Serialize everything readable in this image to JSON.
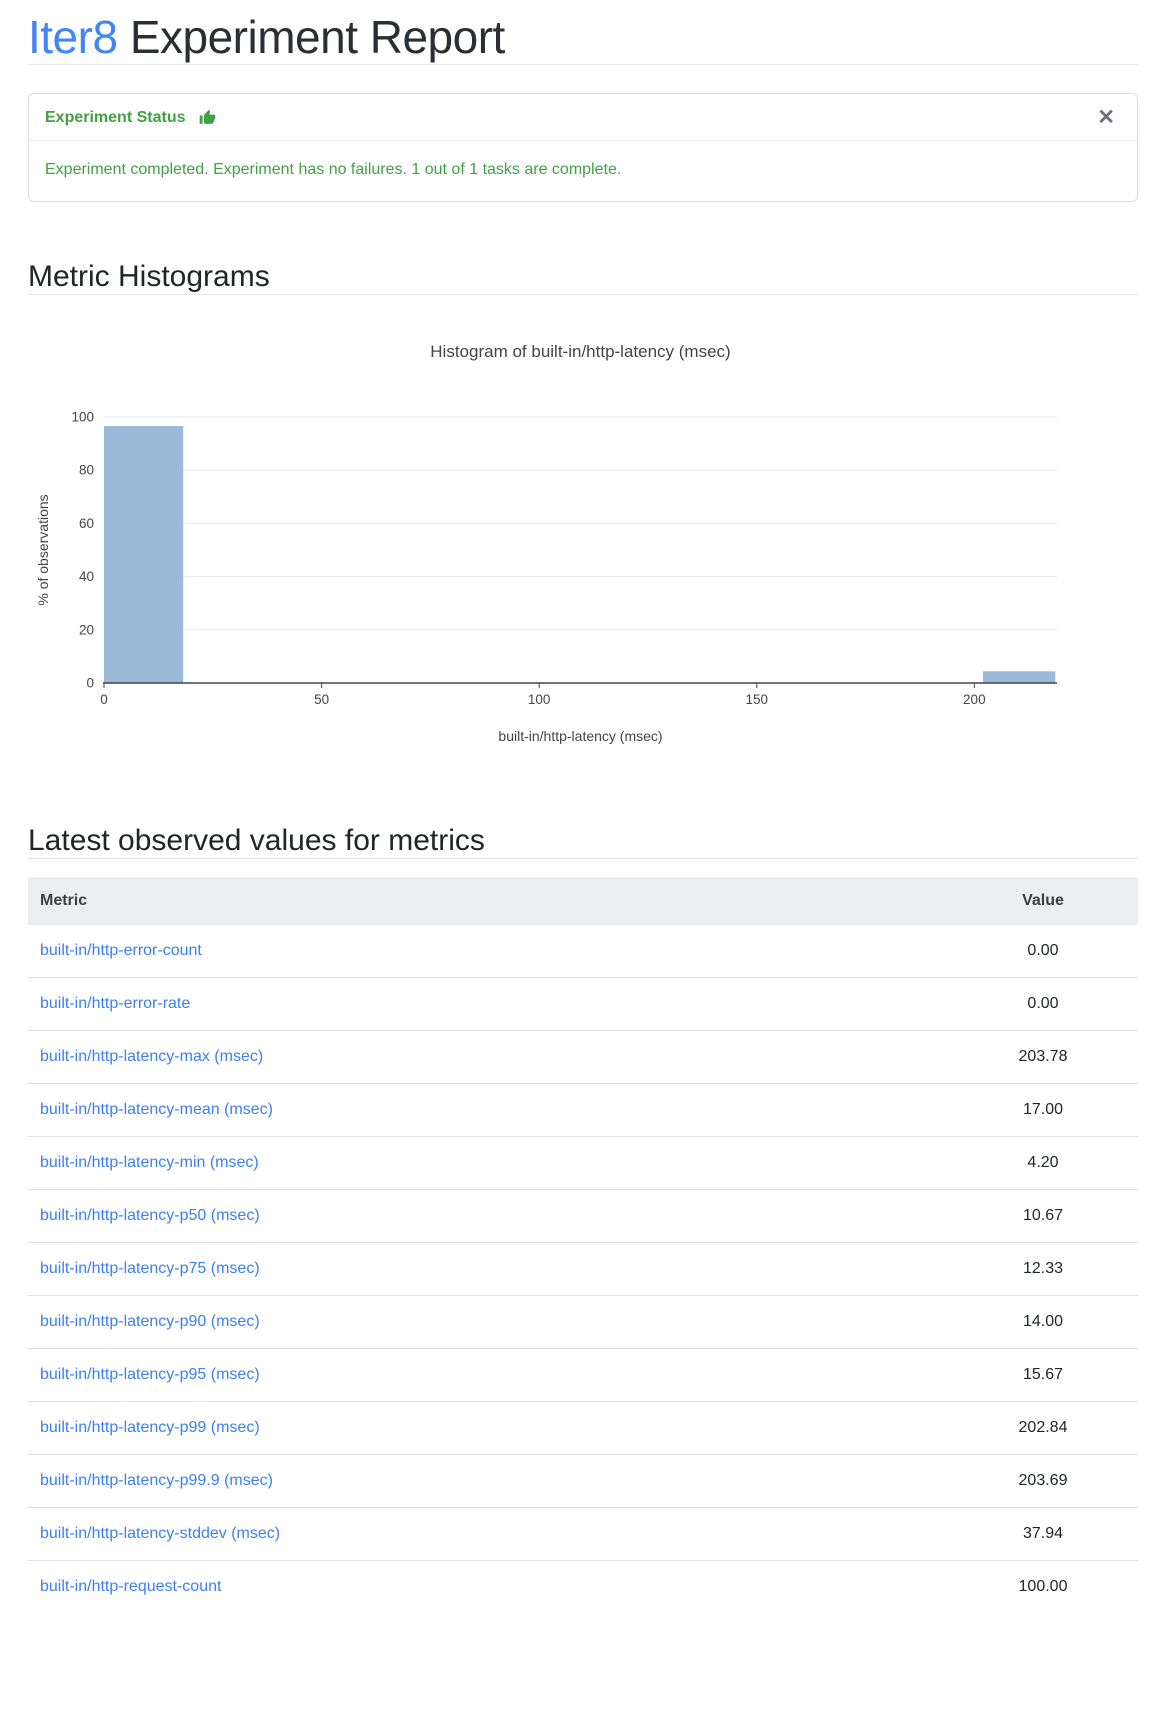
{
  "page": {
    "title": {
      "brand": "Iter8",
      "rest": "Experiment Report"
    }
  },
  "colors": {
    "brand_blue": "#4285f4",
    "link_blue": "#3d7ff0",
    "success_green": "#43a047",
    "bar_color": "#9bb9d9"
  },
  "status_card": {
    "header": "Experiment Status",
    "icon": "thumbs-up-icon",
    "close_glyph": "✕",
    "message": "Experiment completed. Experiment has no failures. 1 out of 1 tasks are complete."
  },
  "sections": {
    "histograms_title": "Metric Histograms",
    "table_title": "Latest observed values for metrics"
  },
  "chart_data": {
    "type": "bar",
    "subtype": "histogram",
    "title": "Histogram of built-in/http-latency (msec)",
    "xlabel": "built-in/http-latency (msec)",
    "ylabel": "% of observations",
    "xlim": [
      0,
      219
    ],
    "ylim": [
      0,
      100
    ],
    "x_ticks": [
      0,
      50,
      100,
      150,
      200
    ],
    "y_ticks": [
      0,
      20,
      40,
      60,
      80,
      100
    ],
    "grid": "horizontal",
    "legend": "none",
    "bars": [
      {
        "x_start": 0,
        "x_end": 18.2,
        "value": 96.6
      },
      {
        "x_start": 202,
        "x_end": 218.6,
        "value": 4.4
      }
    ]
  },
  "table": {
    "columns": [
      "Metric",
      "Value"
    ],
    "rows": [
      {
        "metric": "built-in/http-error-count",
        "value": "0.00"
      },
      {
        "metric": "built-in/http-error-rate",
        "value": "0.00"
      },
      {
        "metric": "built-in/http-latency-max (msec)",
        "value": "203.78"
      },
      {
        "metric": "built-in/http-latency-mean (msec)",
        "value": "17.00"
      },
      {
        "metric": "built-in/http-latency-min (msec)",
        "value": "4.20"
      },
      {
        "metric": "built-in/http-latency-p50 (msec)",
        "value": "10.67"
      },
      {
        "metric": "built-in/http-latency-p75 (msec)",
        "value": "12.33"
      },
      {
        "metric": "built-in/http-latency-p90 (msec)",
        "value": "14.00"
      },
      {
        "metric": "built-in/http-latency-p95 (msec)",
        "value": "15.67"
      },
      {
        "metric": "built-in/http-latency-p99 (msec)",
        "value": "202.84"
      },
      {
        "metric": "built-in/http-latency-p99.9 (msec)",
        "value": "203.69"
      },
      {
        "metric": "built-in/http-latency-stddev (msec)",
        "value": "37.94"
      },
      {
        "metric": "built-in/http-request-count",
        "value": "100.00"
      }
    ]
  }
}
